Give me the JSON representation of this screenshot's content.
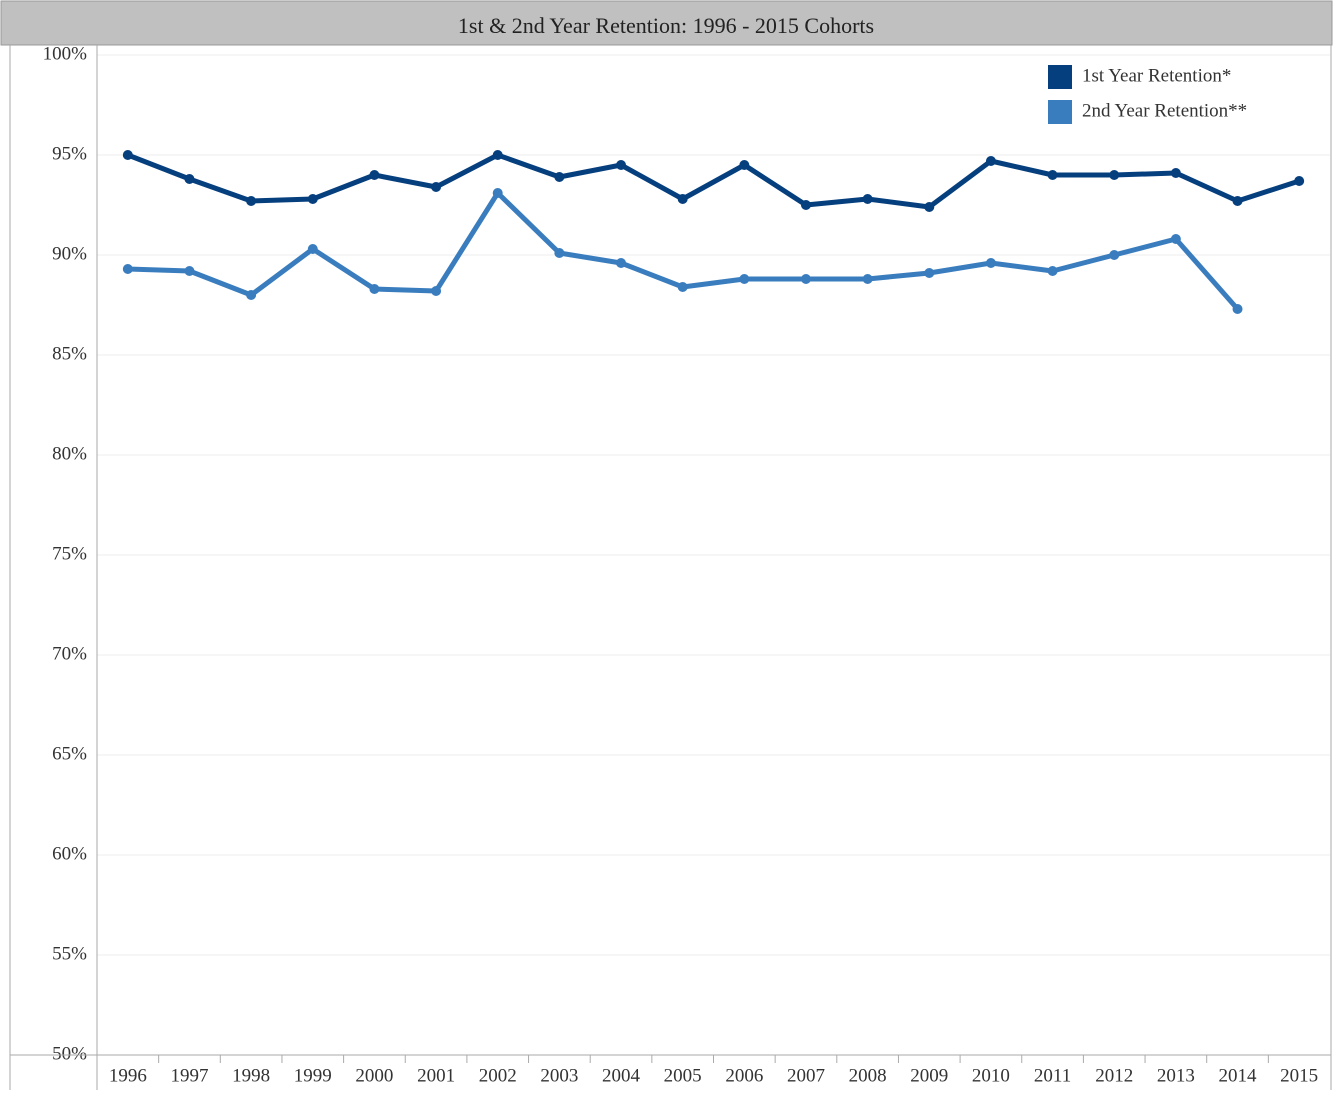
{
  "chart_data": {
    "type": "line",
    "title": "1st & 2nd Year Retention: 1996 - 2015 Cohorts",
    "categories": [
      "1996",
      "1997",
      "1998",
      "1999",
      "2000",
      "2001",
      "2002",
      "2003",
      "2004",
      "2005",
      "2006",
      "2007",
      "2008",
      "2009",
      "2010",
      "2011",
      "2012",
      "2013",
      "2014",
      "2015"
    ],
    "series": [
      {
        "name": "1st Year Retention*",
        "color": "#063f7e",
        "values": [
          95.0,
          93.8,
          92.7,
          92.8,
          94.0,
          93.4,
          95.0,
          93.9,
          94.5,
          92.8,
          94.5,
          92.5,
          92.8,
          92.4,
          94.7,
          94.0,
          94.0,
          94.1,
          92.7,
          93.7
        ]
      },
      {
        "name": "2nd Year Retention**",
        "color": "#3a7dbe",
        "values": [
          89.3,
          89.2,
          88.0,
          90.3,
          88.3,
          88.2,
          93.1,
          90.1,
          89.6,
          88.4,
          88.8,
          88.8,
          88.8,
          89.1,
          89.6,
          89.2,
          90.0,
          90.8,
          87.3,
          null
        ]
      }
    ],
    "ylim": [
      50,
      100
    ],
    "yticks": [
      {
        "value": 50,
        "label": "50%"
      },
      {
        "value": 55,
        "label": "55%"
      },
      {
        "value": 60,
        "label": "60%"
      },
      {
        "value": 65,
        "label": "65%"
      },
      {
        "value": 70,
        "label": "70%"
      },
      {
        "value": 75,
        "label": "75%"
      },
      {
        "value": 80,
        "label": "80%"
      },
      {
        "value": 85,
        "label": "85%"
      },
      {
        "value": 90,
        "label": "90%"
      },
      {
        "value": 95,
        "label": "95%"
      },
      {
        "value": 100,
        "label": "100%"
      }
    ],
    "grid": true,
    "legend": "top-right"
  }
}
